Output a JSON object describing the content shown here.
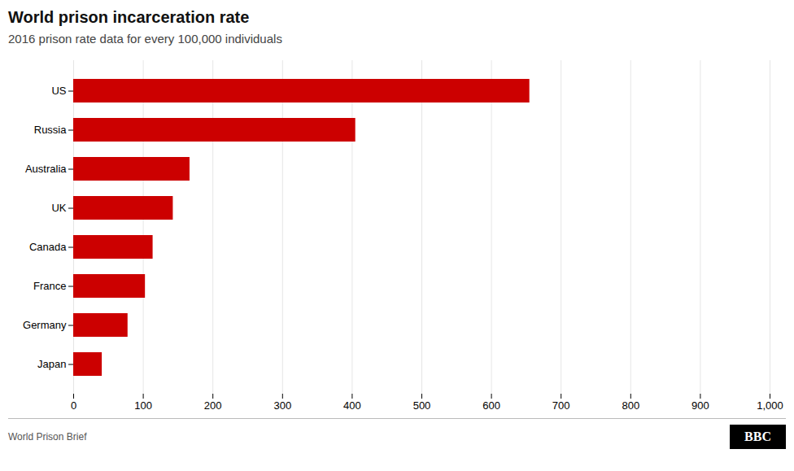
{
  "chart_data": {
    "type": "bar",
    "orientation": "horizontal",
    "title": "World prison incarceration rate",
    "subtitle": "2016 prison rate data for every 100,000 individuals",
    "source": "World Prison Brief",
    "logo": "BBC",
    "categories": [
      "US",
      "Russia",
      "Australia",
      "UK",
      "Canada",
      "France",
      "Germany",
      "Japan"
    ],
    "values": [
      655,
      405,
      167,
      143,
      114,
      103,
      78,
      41
    ],
    "color": "#cc0000",
    "xlim": [
      0,
      1000
    ],
    "xticks": [
      0,
      100,
      200,
      300,
      400,
      500,
      600,
      700,
      800,
      900,
      {
        "value": 1000,
        "label": "1,000"
      }
    ],
    "grid": true
  }
}
